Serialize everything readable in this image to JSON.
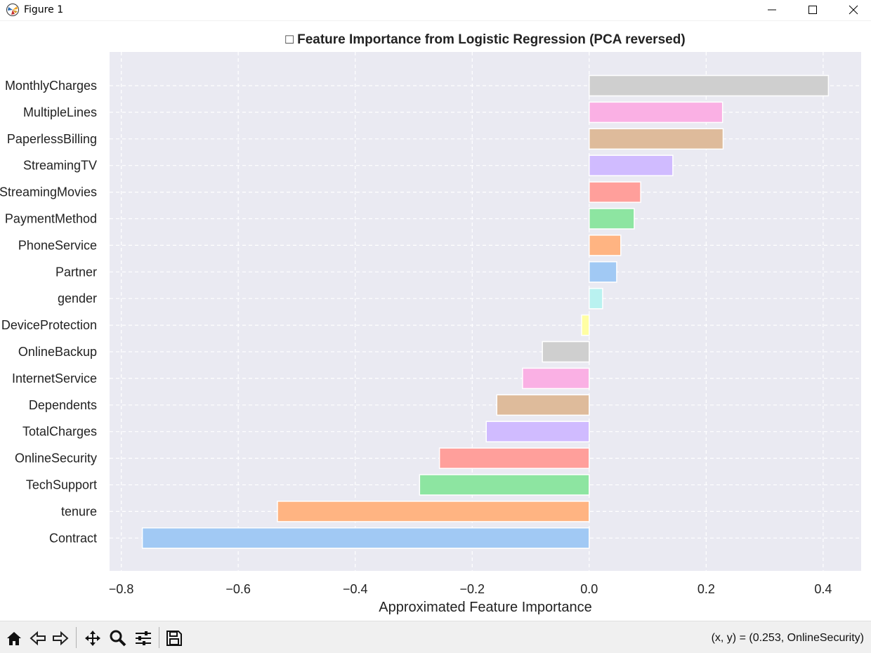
{
  "window": {
    "title": "Figure 1"
  },
  "status": {
    "coords": "(x, y) = (0.253, OnlineSecurity)"
  },
  "toolbar": {
    "tools": [
      "home-icon",
      "back-icon",
      "forward-icon",
      "pan-icon",
      "zoom-icon",
      "configure-icon",
      "save-icon"
    ]
  },
  "chart_data": {
    "type": "bar",
    "orientation": "horizontal",
    "title": "□ Feature Importance from Logistic Regression (PCA reversed)",
    "xlabel": "Approximated Feature Importance",
    "ylabel": "",
    "xlim": [
      -0.82,
      0.465
    ],
    "xticks": [
      -0.8,
      -0.6,
      -0.4,
      -0.2,
      0.0,
      0.2,
      0.4
    ],
    "xtick_labels": [
      "−0.8",
      "−0.6",
      "−0.4",
      "−0.2",
      "0.0",
      "0.2",
      "0.4"
    ],
    "grid": true,
    "categories": [
      "MonthlyCharges",
      "MultipleLines",
      "PaperlessBilling",
      "StreamingTV",
      "StreamingMovies",
      "PaymentMethod",
      "PhoneService",
      "Partner",
      "gender",
      "DeviceProtection",
      "OnlineBackup",
      "InternetService",
      "Dependents",
      "TotalCharges",
      "OnlineSecurity",
      "TechSupport",
      "tenure",
      "Contract"
    ],
    "values": [
      0.409,
      0.228,
      0.229,
      0.143,
      0.088,
      0.077,
      0.054,
      0.047,
      0.023,
      -0.013,
      -0.08,
      -0.114,
      -0.158,
      -0.176,
      -0.256,
      -0.29,
      -0.533,
      -0.764
    ],
    "colors": [
      "#cfcfcf",
      "#fab0e4",
      "#debb9b",
      "#d0bbff",
      "#ff9f9b",
      "#8de5a1",
      "#ffb482",
      "#a1c9f4",
      "#b9f2f0",
      "#fffea3",
      "#cfcfcf",
      "#fab0e4",
      "#debb9b",
      "#d0bbff",
      "#ff9f9b",
      "#8de5a1",
      "#ffb482",
      "#a1c9f4"
    ],
    "background": "#eaeaf2"
  }
}
